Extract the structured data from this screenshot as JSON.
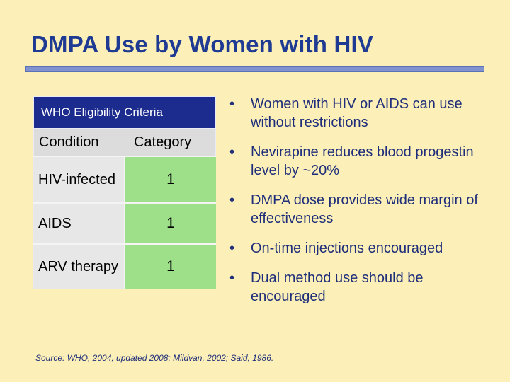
{
  "slide": {
    "title": "DMPA Use by Women with HIV",
    "source": "Source: WHO, 2004, updated 2008; Mildvan, 2002; Said, 1986."
  },
  "table": {
    "header": "WHO Eligibility Criteria",
    "col_condition": "Condition",
    "col_category": "Category",
    "rows": [
      {
        "condition": "HIV-infected",
        "category": "1"
      },
      {
        "condition": "AIDS",
        "category": "1"
      },
      {
        "condition": "ARV therapy",
        "category": "1"
      }
    ]
  },
  "bullets": [
    "Women with HIV or AIDS can use without restrictions",
    "Nevirapine reduces blood progestin level by ~20%",
    "DMPA dose provides wide margin of effectiveness",
    "On-time injections encouraged",
    "Dual method use should be encouraged"
  ],
  "colors": {
    "background": "#fcf0b8",
    "title": "#1f3a93",
    "table_header": "#1c2b8e",
    "category_cell": "#9ee08a"
  }
}
